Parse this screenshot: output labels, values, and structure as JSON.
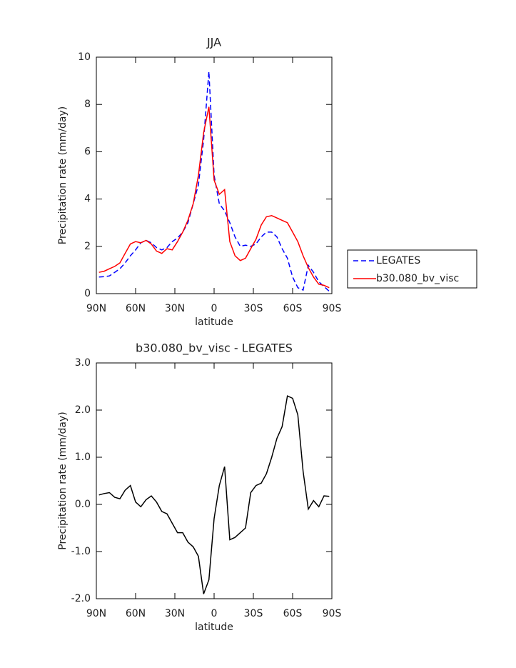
{
  "chart_data": [
    {
      "type": "line",
      "title": "JJA",
      "xlabel": "latitude",
      "ylabel": "Precipitation rate (mm/day)",
      "xlim": [
        90,
        -90
      ],
      "xticks": [
        {
          "value": 90,
          "label": "90N"
        },
        {
          "value": 60,
          "label": "60N"
        },
        {
          "value": 30,
          "label": "30N"
        },
        0,
        {
          "value": -30,
          "label": "30S"
        },
        {
          "value": -60,
          "label": "60S"
        },
        {
          "value": -90,
          "label": "90S"
        }
      ],
      "ylim": [
        0,
        10
      ],
      "yticks": [
        0,
        2,
        4,
        6,
        8,
        10
      ],
      "legend": "right",
      "x": [
        88,
        84,
        80,
        76,
        72,
        68,
        64,
        60,
        56,
        52,
        48,
        44,
        40,
        36,
        32,
        28,
        24,
        20,
        16,
        12,
        8,
        4,
        0,
        -4,
        -8,
        -12,
        -16,
        -20,
        -24,
        -28,
        -32,
        -36,
        -40,
        -44,
        -48,
        -52,
        -56,
        -60,
        -64,
        -68,
        -72,
        -76,
        -80,
        -84,
        -88
      ],
      "series": [
        {
          "name": "LEGATES",
          "color": "#0000ff",
          "dash": "dashed",
          "values": [
            0.7,
            0.72,
            0.75,
            0.9,
            1.05,
            1.3,
            1.6,
            1.85,
            2.15,
            2.25,
            2.15,
            1.95,
            1.85,
            1.95,
            2.2,
            2.35,
            2.6,
            3.0,
            3.8,
            4.6,
            6.5,
            9.4,
            5.0,
            3.8,
            3.5,
            3.0,
            2.4,
            2.0,
            2.05,
            2.0,
            2.1,
            2.4,
            2.6,
            2.6,
            2.4,
            1.9,
            1.5,
            0.7,
            0.25,
            0.15,
            1.2,
            0.9,
            0.5,
            0.3,
            0.1
          ]
        },
        {
          "name": "b30.080_bv_visc",
          "color": "#ff0000",
          "dash": "solid",
          "values": [
            0.9,
            0.95,
            1.05,
            1.15,
            1.3,
            1.7,
            2.1,
            2.2,
            2.15,
            2.25,
            2.1,
            1.8,
            1.7,
            1.9,
            1.85,
            2.2,
            2.6,
            3.1,
            3.8,
            5.0,
            6.8,
            7.9,
            4.8,
            4.2,
            4.4,
            2.2,
            1.6,
            1.4,
            1.5,
            1.9,
            2.3,
            2.9,
            3.25,
            3.3,
            3.2,
            3.1,
            3.0,
            2.6,
            2.2,
            1.6,
            1.1,
            0.7,
            0.4,
            0.35,
            0.25
          ]
        }
      ]
    },
    {
      "type": "line",
      "title": "b30.080_bv_visc - LEGATES",
      "xlabel": "latitude",
      "ylabel": "Precipitation rate (mm/day)",
      "xlim": [
        90,
        -90
      ],
      "xticks": [
        {
          "value": 90,
          "label": "90N"
        },
        {
          "value": 60,
          "label": "60N"
        },
        {
          "value": 30,
          "label": "30N"
        },
        0,
        {
          "value": -30,
          "label": "30S"
        },
        {
          "value": -60,
          "label": "60S"
        },
        {
          "value": -90,
          "label": "90S"
        }
      ],
      "ylim": [
        -2,
        3
      ],
      "yticks": [
        {
          "value": -2,
          "label": "-2.0"
        },
        {
          "value": -1,
          "label": "-1.0"
        },
        {
          "value": 0,
          "label": "0.0"
        },
        {
          "value": 1,
          "label": "1.0"
        },
        {
          "value": 2,
          "label": "2.0"
        },
        {
          "value": 3,
          "label": "3.0"
        }
      ],
      "x": [
        88,
        84,
        80,
        76,
        72,
        68,
        64,
        60,
        56,
        52,
        48,
        44,
        40,
        36,
        32,
        28,
        24,
        20,
        16,
        12,
        8,
        4,
        0,
        -4,
        -8,
        -12,
        -16,
        -20,
        -24,
        -28,
        -32,
        -36,
        -40,
        -44,
        -48,
        -52,
        -56,
        -60,
        -64,
        -68,
        -72,
        -76,
        -80,
        -84,
        -88
      ],
      "series": [
        {
          "color": "#000000",
          "dash": "solid",
          "values": [
            0.2,
            0.23,
            0.25,
            0.15,
            0.12,
            0.3,
            0.4,
            0.05,
            -0.05,
            0.1,
            0.18,
            0.05,
            -0.15,
            -0.2,
            -0.4,
            -0.6,
            -0.6,
            -0.8,
            -0.9,
            -1.1,
            -1.9,
            -1.6,
            -0.3,
            0.4,
            0.8,
            -0.75,
            -0.7,
            -0.6,
            -0.5,
            0.25,
            0.4,
            0.45,
            0.65,
            1.0,
            1.4,
            1.65,
            2.3,
            2.25,
            1.9,
            0.7,
            -0.1,
            0.08,
            -0.05,
            0.18,
            0.17
          ]
        }
      ]
    }
  ]
}
